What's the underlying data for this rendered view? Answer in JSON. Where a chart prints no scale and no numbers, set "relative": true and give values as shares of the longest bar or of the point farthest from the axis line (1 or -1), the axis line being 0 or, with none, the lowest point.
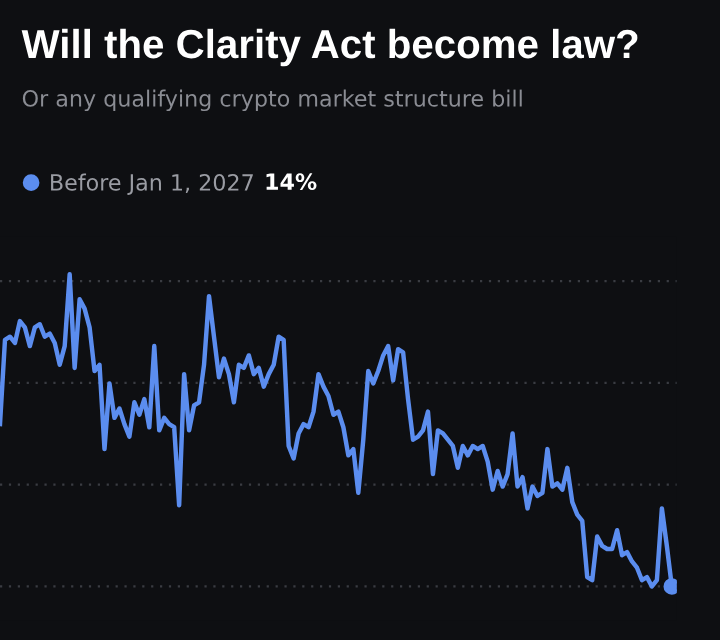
{
  "chart_data": {
    "type": "line",
    "title": "Will the Clarity Act become law?",
    "subtitle": "Or any qualifying crypto market structure bill",
    "relative": true,
    "grid": "y",
    "legend": "top left",
    "marker": "none",
    "line_style": "solid",
    "annotations": [
      "14%"
    ],
    "categories": [
      null,
      null,
      null,
      null,
      null,
      null,
      null,
      null,
      null,
      null,
      null,
      null,
      null,
      null,
      null,
      null,
      null,
      null,
      null,
      null,
      null,
      null,
      null,
      null,
      null,
      null,
      null,
      null,
      null,
      null,
      null,
      null,
      null,
      null,
      null,
      null,
      null,
      null,
      null,
      null,
      null,
      null,
      null,
      null,
      null,
      null,
      null,
      null,
      null,
      null,
      null,
      null,
      null,
      null,
      null,
      null,
      null,
      null,
      null,
      null,
      null,
      null,
      null,
      null,
      null,
      null,
      null,
      null,
      null,
      null,
      null,
      null,
      null,
      null,
      null,
      null,
      null,
      null,
      null,
      null,
      null,
      null,
      null,
      null,
      null,
      null,
      null,
      null,
      null,
      null,
      null,
      null,
      null,
      null,
      null,
      null,
      null,
      null,
      null,
      null,
      null,
      null,
      null,
      null,
      null,
      null,
      null,
      null,
      null,
      null,
      null,
      null,
      null,
      null,
      null,
      null,
      null,
      null,
      null,
      null,
      null,
      null,
      null,
      null,
      null,
      null,
      null,
      null,
      null,
      null,
      null,
      null,
      null,
      null,
      null,
      null
    ],
    "series": [
      {
        "name": "Before Jan 1, 2027",
        "color": "#5b8def",
        "values": [
          0.52,
          0.79,
          0.8,
          0.78,
          0.85,
          0.83,
          0.77,
          0.83,
          0.84,
          0.8,
          0.81,
          0.78,
          0.71,
          0.77,
          1.0,
          0.7,
          0.92,
          0.89,
          0.83,
          0.69,
          0.71,
          0.44,
          0.65,
          0.54,
          0.57,
          0.52,
          0.48,
          0.59,
          0.55,
          0.6,
          0.51,
          0.77,
          0.5,
          0.54,
          0.52,
          0.51,
          0.26,
          0.68,
          0.5,
          0.58,
          0.59,
          0.71,
          0.93,
          0.8,
          0.67,
          0.73,
          0.68,
          0.59,
          0.71,
          0.7,
          0.74,
          0.68,
          0.7,
          0.64,
          0.68,
          0.71,
          0.8,
          0.79,
          0.45,
          0.41,
          0.49,
          0.52,
          0.51,
          0.56,
          0.68,
          0.64,
          0.61,
          0.55,
          0.56,
          0.51,
          0.42,
          0.44,
          0.3,
          0.47,
          0.69,
          0.65,
          0.69,
          0.74,
          0.77,
          0.66,
          0.76,
          0.75,
          0.6,
          0.47,
          0.48,
          0.5,
          0.56,
          0.36,
          0.5,
          0.49,
          0.47,
          0.45,
          0.38,
          0.45,
          0.42,
          0.45,
          0.44,
          0.45,
          0.4,
          0.31,
          0.37,
          0.32,
          0.36,
          0.49,
          0.32,
          0.35,
          0.25,
          0.32,
          0.29,
          0.3,
          0.44,
          0.32,
          0.33,
          0.31,
          0.38,
          0.27,
          0.23,
          0.21,
          0.03,
          0.02,
          0.16,
          0.13,
          0.12,
          0.12,
          0.18,
          0.1,
          0.11,
          0.08,
          0.06,
          0.02,
          0.03,
          0.0,
          0.02,
          0.25,
          0.13,
          0.0
        ]
      }
    ]
  }
}
